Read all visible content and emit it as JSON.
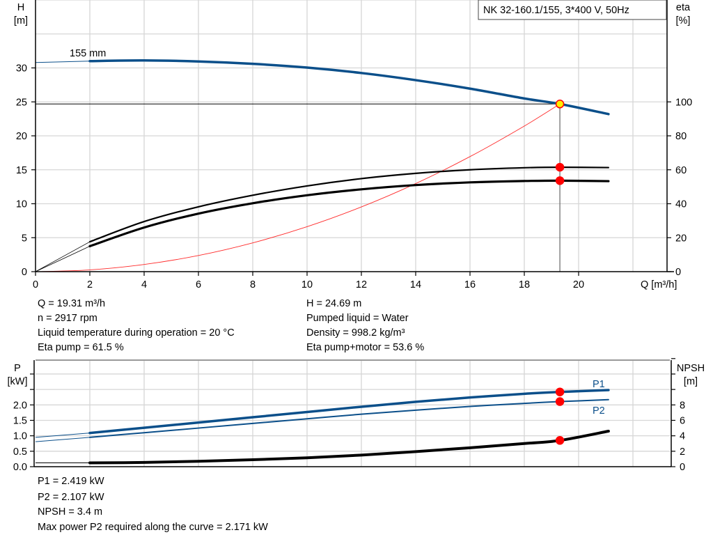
{
  "title_box": "NK 32-160.1/155, 3*400 V, 50Hz",
  "colors": {
    "blue": "#0b4f8a",
    "black": "#000000",
    "system_curve": "#ff2a2a",
    "duty_point": "#ff0000",
    "duty_point_main": "#ffee00",
    "grid": "#d6d6d6"
  },
  "chart_data": [
    {
      "type": "line",
      "xlabel": "Q [m³/h]",
      "x_ticks": [
        "0",
        "2",
        "4",
        "6",
        "8",
        "10",
        "12",
        "14",
        "16",
        "18",
        "20"
      ],
      "xlim": [
        0,
        23.3
      ],
      "ylabel_left": [
        "H",
        "[m]"
      ],
      "y_left_ticks": [
        "0",
        "5",
        "10",
        "15",
        "20",
        "25",
        "30"
      ],
      "ylim_left": [
        0,
        40
      ],
      "ylabel_right": [
        "eta",
        "[%]"
      ],
      "y_right_ticks": [
        "0",
        "20",
        "40",
        "60",
        "80",
        "100"
      ],
      "ylim_right": [
        0,
        160
      ],
      "grid": true,
      "curve_label": "155 mm",
      "series": [
        {
          "id": "head",
          "axis": "left",
          "color": "#0b4f8a",
          "x": [
            0,
            2,
            4,
            6,
            8,
            10,
            12,
            14,
            16,
            18,
            19.31,
            21.1
          ],
          "y": [
            30.8,
            31.0,
            31.1,
            30.95,
            30.6,
            30.05,
            29.25,
            28.2,
            26.95,
            25.5,
            24.69,
            23.2
          ]
        },
        {
          "id": "eta-pump",
          "axis": "right",
          "color": "#000000",
          "x": [
            0,
            2,
            4,
            6,
            8,
            10,
            12,
            14,
            16,
            18,
            19.31,
            21.1
          ],
          "y": [
            0,
            17.6,
            29.5,
            38.2,
            45,
            50.5,
            54.8,
            57.9,
            60,
            61.2,
            61.5,
            61.3
          ]
        },
        {
          "id": "eta-pump-motor",
          "axis": "right",
          "color": "#000000",
          "x": [
            0,
            2,
            4,
            6,
            8,
            10,
            12,
            14,
            16,
            18,
            19.31,
            21.1
          ],
          "y": [
            0,
            15,
            26,
            34.2,
            40.3,
            45,
            48.5,
            51,
            52.6,
            53.4,
            53.6,
            53.3
          ]
        },
        {
          "id": "system-curve",
          "axis": "left",
          "color": "#ff2a2a",
          "x": [
            0,
            2,
            4,
            6,
            8,
            10,
            12,
            14,
            16,
            18,
            19.31
          ],
          "y": [
            0,
            0.26,
            1.06,
            2.38,
            4.24,
            6.62,
            9.53,
            12.97,
            16.94,
            21.44,
            24.69
          ]
        }
      ],
      "duty_point": {
        "q": 19.31,
        "h": 24.69,
        "eta_pump": 61.5,
        "eta_pump_motor": 53.6
      }
    },
    {
      "type": "line",
      "xlim": [
        0,
        23.3
      ],
      "ylabel_left": [
        "P",
        "[kW]"
      ],
      "y_left_ticks": [
        "0.0",
        "0.5",
        "1.0",
        "1.5",
        "2.0"
      ],
      "ylim_left": [
        0,
        3.45
      ],
      "ylabel_right": [
        "NPSH",
        "[m]"
      ],
      "y_right_ticks": [
        "0",
        "2",
        "4",
        "6",
        "8"
      ],
      "ylim_right": [
        0,
        13.8
      ],
      "grid": true,
      "series": [
        {
          "id": "p1",
          "name": "P1",
          "axis": "left",
          "color": "#0b4f8a",
          "x": [
            0,
            2,
            4,
            6,
            8,
            10,
            12,
            14,
            16,
            18,
            19.31,
            21.1
          ],
          "y": [
            0.95,
            1.09,
            1.26,
            1.43,
            1.6,
            1.77,
            1.94,
            2.1,
            2.24,
            2.36,
            2.419,
            2.48
          ]
        },
        {
          "id": "p2",
          "name": "P2",
          "axis": "left",
          "color": "#0b4f8a",
          "x": [
            0,
            2,
            4,
            6,
            8,
            10,
            12,
            14,
            16,
            18,
            19.31,
            21.1
          ],
          "y": [
            0.81,
            0.95,
            1.1,
            1.25,
            1.4,
            1.55,
            1.7,
            1.83,
            1.95,
            2.05,
            2.107,
            2.17
          ]
        },
        {
          "id": "npsh",
          "axis": "right",
          "color": "#000000",
          "x": [
            0,
            2,
            4,
            6,
            8,
            10,
            12,
            14,
            16,
            18,
            19.31,
            21.1
          ],
          "y": [
            0.5,
            0.5,
            0.55,
            0.7,
            0.9,
            1.15,
            1.5,
            1.95,
            2.45,
            3.0,
            3.4,
            4.6
          ]
        }
      ],
      "duty_point": {
        "q": 19.31,
        "p1": 2.419,
        "p2": 2.107,
        "npsh": 3.4
      }
    }
  ],
  "info_top": {
    "left": [
      "Q = 19.31 m³/h",
      "n = 2917 rpm",
      "Liquid temperature during operation = 20 °C",
      "Eta pump = 61.5 %"
    ],
    "right": [
      "H = 24.69 m",
      "Pumped liquid = Water",
      "Density = 998.2 kg/m³",
      "Eta pump+motor = 53.6 %"
    ]
  },
  "info_bottom": [
    "P1 = 2.419 kW",
    "P2 = 2.107 kW",
    "NPSH = 3.4 m",
    "Max power P2 required along the curve = 2.171 kW"
  ]
}
